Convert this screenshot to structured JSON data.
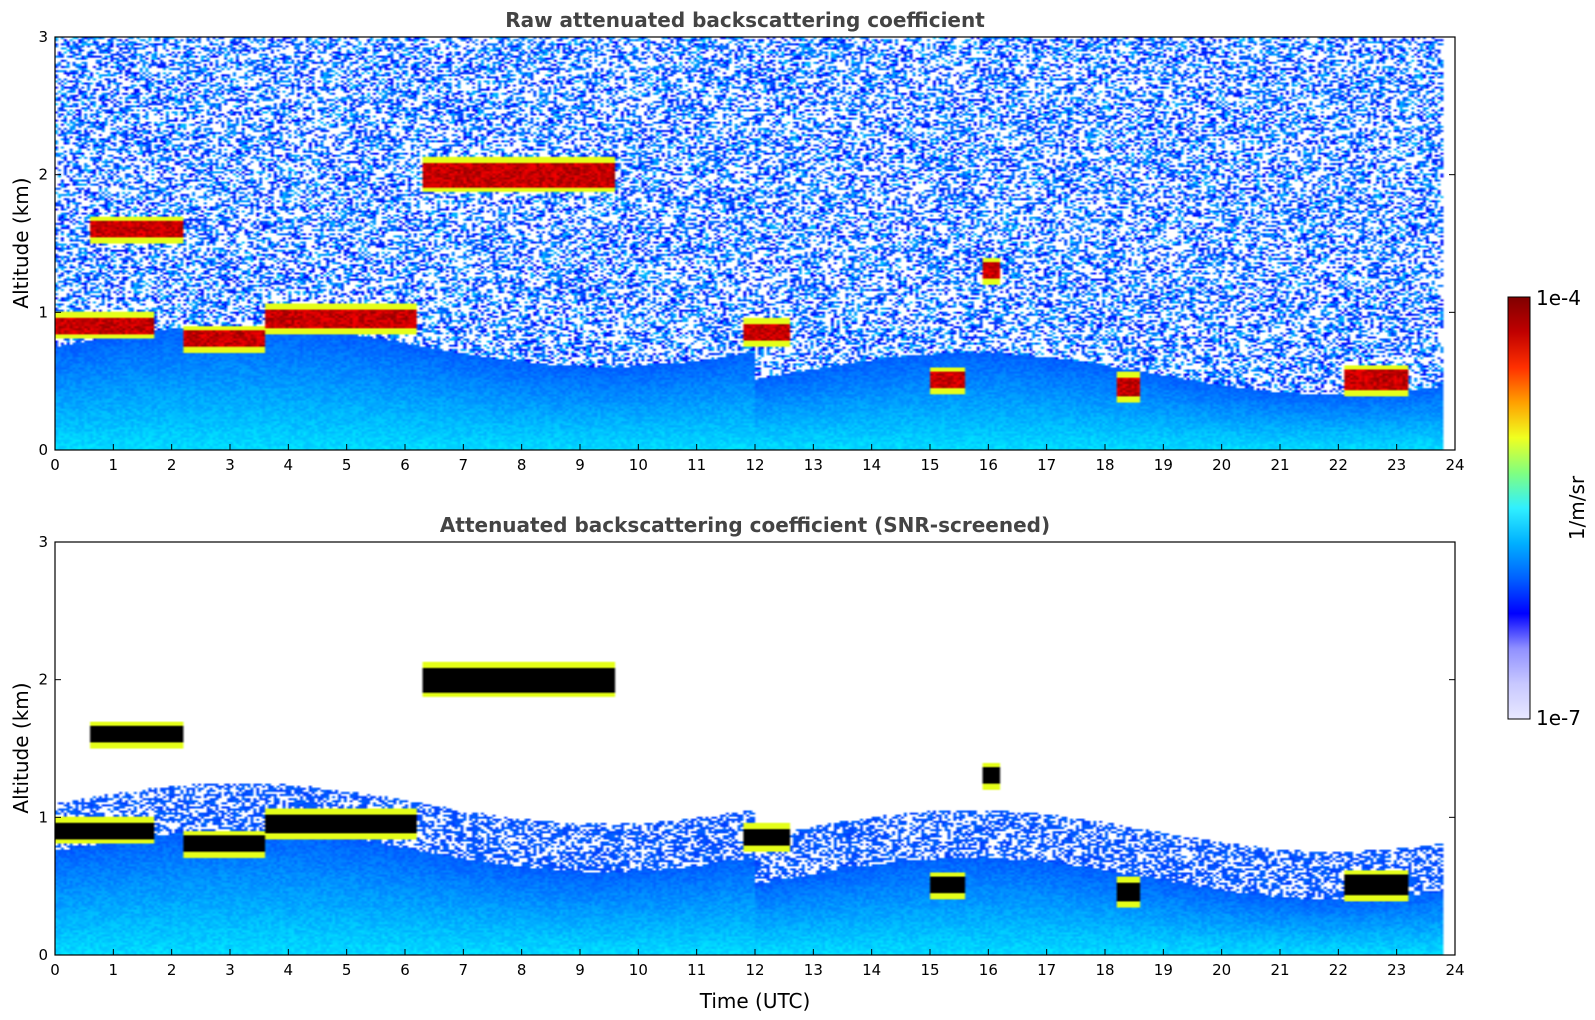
{
  "chart_data": [
    {
      "type": "heatmap",
      "title": "Raw attenuated backscattering coefficient",
      "xlabel": "",
      "ylabel": "Altitude (km)",
      "xlim": [
        0,
        24
      ],
      "ylim": [
        0,
        3
      ],
      "xticks": [
        "0",
        "1",
        "2",
        "3",
        "4",
        "5",
        "6",
        "7",
        "8",
        "9",
        "10",
        "11",
        "12",
        "13",
        "14",
        "15",
        "16",
        "17",
        "18",
        "19",
        "20",
        "21",
        "22",
        "23",
        "24"
      ],
      "yticks": [
        "0",
        "1",
        "2",
        "3"
      ],
      "screened": false,
      "colormap": "jet",
      "layers": [
        {
          "t0": 0.0,
          "t1": 1.7,
          "alt": 0.9,
          "thick": 0.12
        },
        {
          "t0": 0.6,
          "t1": 2.2,
          "alt": 1.6,
          "thick": 0.12
        },
        {
          "t0": 2.2,
          "t1": 3.6,
          "alt": 0.8,
          "thick": 0.12
        },
        {
          "t0": 3.6,
          "t1": 6.2,
          "alt": 0.95,
          "thick": 0.15
        },
        {
          "t0": 6.3,
          "t1": 9.6,
          "alt": 2.0,
          "thick": 0.18
        },
        {
          "t0": 11.8,
          "t1": 12.6,
          "alt": 0.85,
          "thick": 0.12
        },
        {
          "t0": 15.0,
          "t1": 15.6,
          "alt": 0.5,
          "thick": 0.12
        },
        {
          "t0": 15.9,
          "t1": 16.2,
          "alt": 1.3,
          "thick": 0.12
        },
        {
          "t0": 18.2,
          "t1": 18.6,
          "alt": 0.45,
          "thick": 0.14
        },
        {
          "t0": 22.1,
          "t1": 23.2,
          "alt": 0.5,
          "thick": 0.15
        }
      ]
    },
    {
      "type": "heatmap",
      "title": "Attenuated backscattering coefficient (SNR-screened)",
      "xlabel": "Time (UTC)",
      "ylabel": "Altitude (km)",
      "xlim": [
        0,
        24
      ],
      "ylim": [
        0,
        3
      ],
      "xticks": [
        "0",
        "1",
        "2",
        "3",
        "4",
        "5",
        "6",
        "7",
        "8",
        "9",
        "10",
        "11",
        "12",
        "13",
        "14",
        "15",
        "16",
        "17",
        "18",
        "19",
        "20",
        "21",
        "22",
        "23",
        "24"
      ],
      "yticks": [
        "0",
        "1",
        "2",
        "3"
      ],
      "screened": true,
      "colormap": "jet",
      "layers": [
        {
          "t0": 0.0,
          "t1": 1.7,
          "alt": 0.9,
          "thick": 0.12
        },
        {
          "t0": 0.6,
          "t1": 2.2,
          "alt": 1.6,
          "thick": 0.12
        },
        {
          "t0": 2.2,
          "t1": 3.6,
          "alt": 0.8,
          "thick": 0.12
        },
        {
          "t0": 3.6,
          "t1": 6.2,
          "alt": 0.95,
          "thick": 0.15
        },
        {
          "t0": 6.3,
          "t1": 9.6,
          "alt": 2.0,
          "thick": 0.18
        },
        {
          "t0": 11.8,
          "t1": 12.6,
          "alt": 0.85,
          "thick": 0.12
        },
        {
          "t0": 15.0,
          "t1": 15.6,
          "alt": 0.5,
          "thick": 0.12
        },
        {
          "t0": 15.9,
          "t1": 16.2,
          "alt": 1.3,
          "thick": 0.12
        },
        {
          "t0": 18.2,
          "t1": 18.6,
          "alt": 0.45,
          "thick": 0.14
        },
        {
          "t0": 22.1,
          "t1": 23.2,
          "alt": 0.5,
          "thick": 0.15
        }
      ]
    }
  ],
  "colorbar": {
    "label": "1/m/sr",
    "max_label": "1e-4",
    "min_label": "1e-7",
    "colors": [
      "#e8e8ff",
      "#c8c8ff",
      "#9090ff",
      "#0000ff",
      "#0060ff",
      "#00b0ff",
      "#30f0ff",
      "#80ff80",
      "#f0ff20",
      "#ffa000",
      "#ff3000",
      "#c00000",
      "#800000"
    ]
  }
}
